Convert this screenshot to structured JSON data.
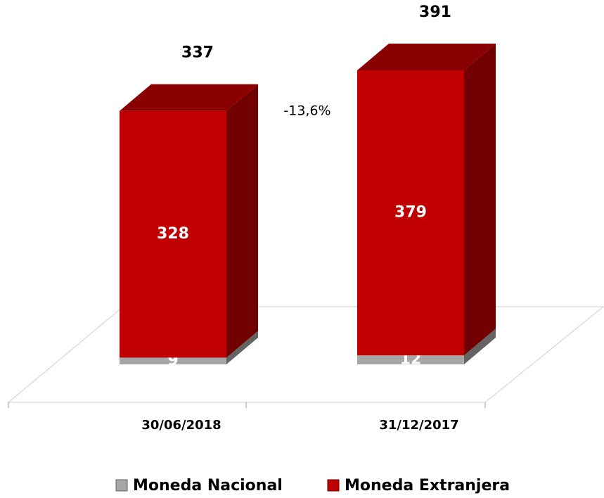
{
  "chart_data": {
    "type": "bar3d_stacked",
    "categories": [
      "30/06/2018",
      "31/12/2017"
    ],
    "series": [
      {
        "name": "Moneda Nacional",
        "color": "#a6a6a6",
        "values": [
          9,
          12
        ]
      },
      {
        "name": "Moneda Extranjera",
        "color": "#c00000",
        "values": [
          328,
          379
        ]
      }
    ],
    "totals": [
      337,
      391
    ],
    "annotation": "-13,6%"
  }
}
